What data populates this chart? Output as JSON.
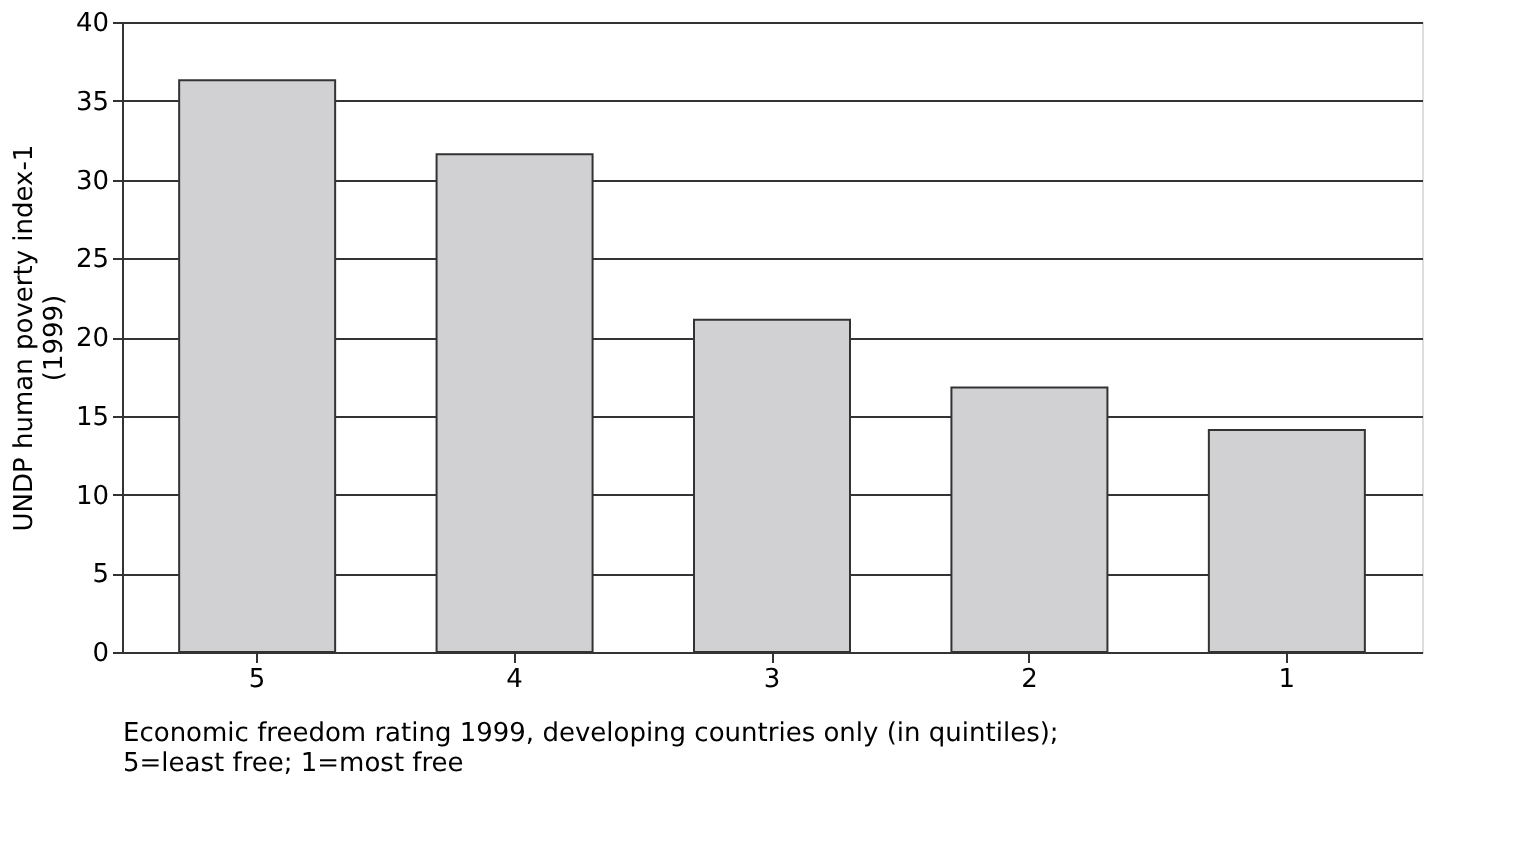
{
  "chart_data": {
    "type": "bar",
    "categories": [
      "5",
      "4",
      "3",
      "2",
      "1"
    ],
    "values": [
      36.3,
      31.6,
      21.1,
      16.8,
      14.1
    ],
    "color": "#d1d1d4",
    "xlabel": "Economic freedom rating 1999, developing countries only (in quintiles);\n5=least free; 1=most free",
    "ylabel": "UNDP human poverty index-1\n(1999)",
    "ylim": [
      0,
      40
    ],
    "yticks": [
      0,
      5,
      10,
      15,
      20,
      25,
      30,
      35,
      40
    ],
    "grid": "y"
  }
}
